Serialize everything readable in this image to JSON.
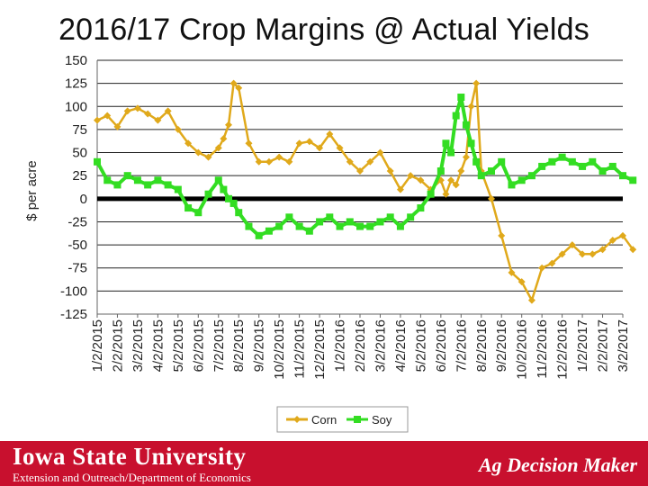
{
  "slide": {
    "title": "2016/17 Crop Margins @ Actual Yields"
  },
  "footer": {
    "university": "Iowa State University",
    "department": "Extension and Outreach/Department of Economics",
    "brand": "Ag Decision Maker",
    "color": "#c8102e"
  },
  "chart_data": {
    "type": "line",
    "title": "2016/17 Crop Margins @ Actual Yields",
    "xlabel": "",
    "ylabel": "$ per acre",
    "ylim": [
      -125,
      150
    ],
    "yticks": [
      150,
      125,
      100,
      75,
      50,
      25,
      0,
      -25,
      -50,
      -75,
      -100,
      -125
    ],
    "x_tick_labels": [
      "1/2/2015",
      "2/2/2015",
      "3/2/2015",
      "4/2/2015",
      "5/2/2015",
      "6/2/2015",
      "7/2/2015",
      "8/2/2015",
      "9/2/2015",
      "10/2/2015",
      "11/2/2015",
      "12/2/2015",
      "1/2/2016",
      "2/2/2016",
      "3/2/2016",
      "4/2/2016",
      "5/2/2016",
      "6/2/2016",
      "7/2/2016",
      "8/2/2016",
      "9/2/2016",
      "10/2/2016",
      "11/2/2016",
      "12/2/2016",
      "1/2/2017",
      "2/2/2017",
      "3/2/2017"
    ],
    "x_months": [
      0,
      0.5,
      1,
      1.5,
      2,
      2.5,
      3,
      3.5,
      4,
      4.5,
      5,
      5.5,
      6,
      6.25,
      6.5,
      6.75,
      7,
      7.5,
      8,
      8.5,
      9,
      9.5,
      10,
      10.5,
      11,
      11.5,
      12,
      12.5,
      13,
      13.5,
      14,
      14.5,
      15,
      15.5,
      16,
      16.5,
      17,
      17.25,
      17.5,
      17.75,
      18,
      18.25,
      18.5,
      18.75,
      19,
      19.5,
      20,
      20.5,
      21,
      21.5,
      22,
      22.5,
      23,
      23.5,
      24,
      24.5,
      25,
      25.5,
      26,
      26.5
    ],
    "zero_line": true,
    "grid": "horizontal",
    "legend": "bottom",
    "series": [
      {
        "name": "Corn",
        "color": "#e0a91b",
        "values": [
          85,
          90,
          78,
          95,
          98,
          92,
          85,
          95,
          75,
          60,
          50,
          45,
          55,
          65,
          80,
          125,
          120,
          60,
          40,
          40,
          45,
          40,
          60,
          62,
          55,
          70,
          55,
          40,
          30,
          40,
          50,
          30,
          10,
          25,
          20,
          10,
          20,
          5,
          20,
          15,
          30,
          45,
          100,
          125,
          30,
          0,
          -40,
          -80,
          -90,
          -110,
          -75,
          -70,
          -60,
          -50,
          -60,
          -60,
          -55,
          -45,
          -40,
          -55
        ]
      },
      {
        "name": "Soy",
        "color": "#33dd22",
        "values": [
          40,
          20,
          15,
          25,
          20,
          15,
          20,
          15,
          10,
          -10,
          -15,
          5,
          20,
          10,
          0,
          -5,
          -15,
          -30,
          -40,
          -35,
          -30,
          -20,
          -30,
          -35,
          -25,
          -20,
          -30,
          -25,
          -30,
          -30,
          -25,
          -20,
          -30,
          -20,
          -10,
          5,
          30,
          60,
          50,
          90,
          110,
          80,
          60,
          40,
          25,
          30,
          40,
          15,
          20,
          25,
          35,
          40,
          45,
          40,
          35,
          40,
          30,
          35,
          25,
          20
        ]
      }
    ]
  }
}
